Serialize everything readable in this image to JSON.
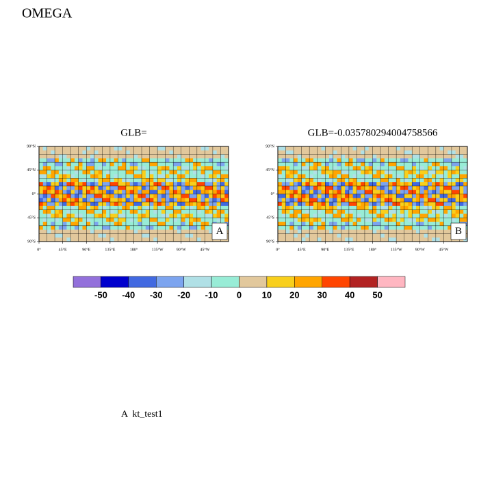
{
  "title": "OMEGA",
  "panels": [
    {
      "title": "GLB=",
      "label": "A"
    },
    {
      "title": "GLB=-0.035780294004758566",
      "label": "B"
    }
  ],
  "lat_labels": [
    "90°N",
    "45°N",
    "0°",
    "45°S",
    "90°S"
  ],
  "lon_labels": [
    "0°",
    "45°E",
    "90°E",
    "135°E",
    "180°",
    "135°W",
    "90°W",
    "45°W"
  ],
  "colorbar": {
    "colors": [
      "#9370db",
      "#0000cd",
      "#4169e1",
      "#7ca4ef",
      "#b0e0e6",
      "#98ecd6",
      "#e2c89c",
      "#f8cf1c",
      "#ffa500",
      "#ff4500",
      "#b22222",
      "#ffb6c1"
    ],
    "levels": [
      -50,
      -40,
      -30,
      -20,
      -10,
      0,
      10,
      20,
      30,
      40,
      50
    ]
  },
  "footer": "A  kt_test1"
}
